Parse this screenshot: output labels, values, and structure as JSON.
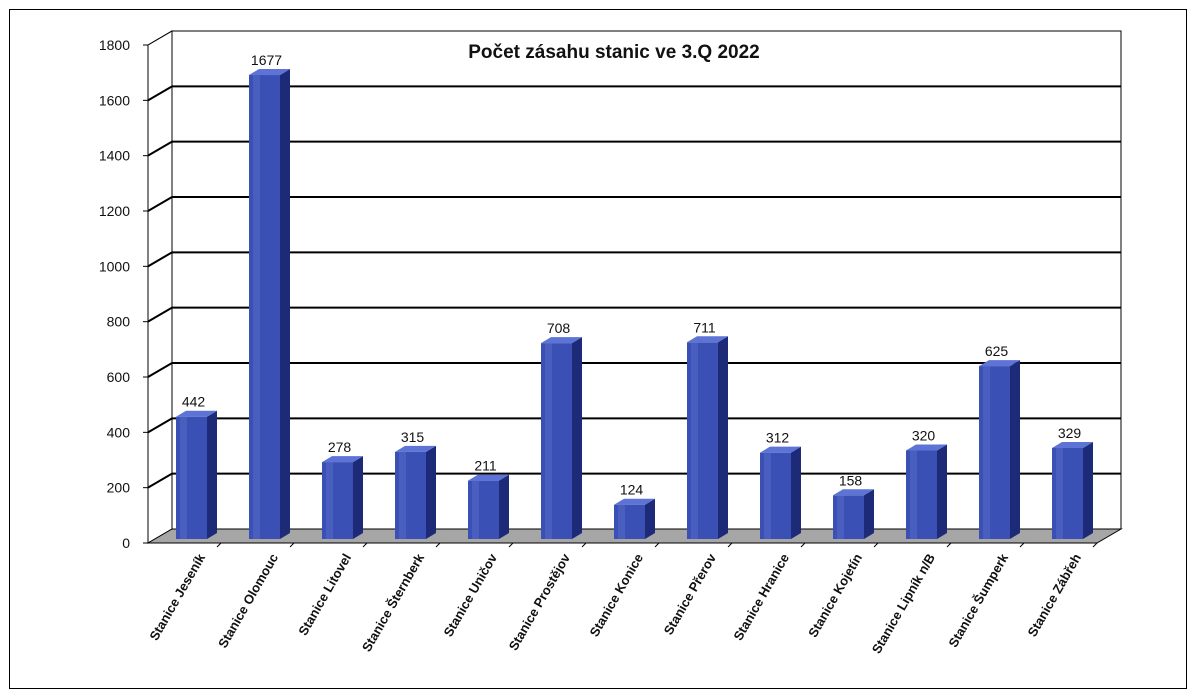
{
  "chart_data": {
    "type": "bar",
    "title": "Počet zásahu stanic ve 3.Q 2022",
    "xlabel": "",
    "ylabel": "",
    "ylim": [
      0,
      1800
    ],
    "yticks": [
      0,
      200,
      400,
      600,
      800,
      1000,
      1200,
      1400,
      1600,
      1800
    ],
    "grid": true,
    "legend": "none",
    "categories": [
      "Stanice Jeseník",
      "Stanice Olomouc",
      "Stanice Litovel",
      "Stanice Šternberk",
      "Stanice Uničov",
      "Stanice Prostějov",
      "Stanice Konice",
      "Stanice Přerov",
      "Stanice Hranice",
      "Stanice Kojetín",
      "Stanice Lipník n/B",
      "Stanice Šumperk",
      "Stanice Zábřeh"
    ],
    "values": [
      442,
      1677,
      278,
      315,
      211,
      708,
      124,
      711,
      312,
      158,
      320,
      625,
      329
    ],
    "colors": {
      "bar_front": "#3a50b4",
      "bar_side": "#1c2a78",
      "bar_top": "#5d73d6",
      "floor": "#a6a6a6",
      "grid": "#000000",
      "background": "#ffffff"
    }
  }
}
